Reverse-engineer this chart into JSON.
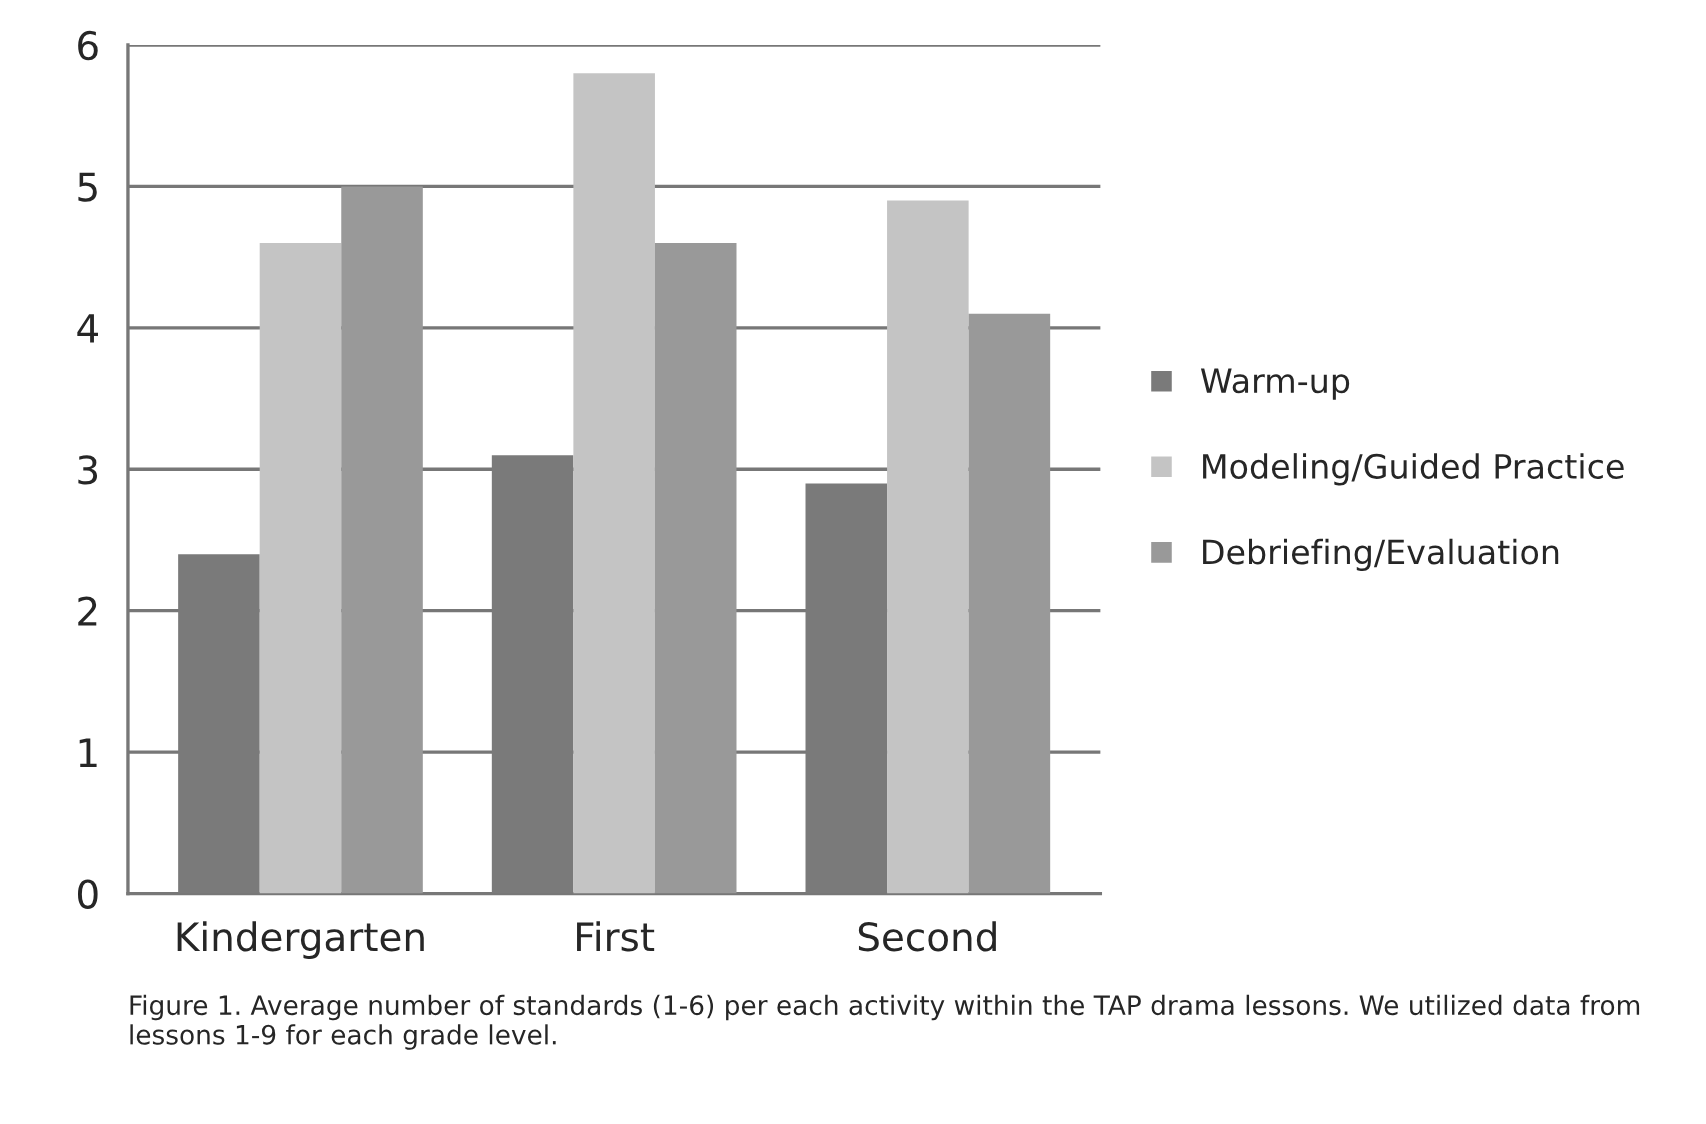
{
  "chart_data": {
    "type": "bar",
    "categories": [
      "Kindergarten",
      "First",
      "Second"
    ],
    "series": [
      {
        "name": "Warm-up",
        "color": "#7a7a7a",
        "values": [
          2.4,
          3.1,
          2.9
        ]
      },
      {
        "name": "Modeling/Guided Practice",
        "color": "#c4c4c4",
        "values": [
          4.6,
          5.8,
          4.9
        ]
      },
      {
        "name": "Debriefing/Evaluation",
        "color": "#999999",
        "values": [
          5.0,
          4.6,
          4.1
        ]
      }
    ],
    "ylim": [
      0,
      6
    ],
    "yticks": [
      0,
      1,
      2,
      3,
      4,
      5,
      6
    ],
    "grid": "y",
    "legend": "right",
    "annotations": [
      "Figure 1. Average number of standards (1-6) per each activity within the TAP drama lessons. We utilized data from lessons 1-9 for each grade level."
    ]
  }
}
